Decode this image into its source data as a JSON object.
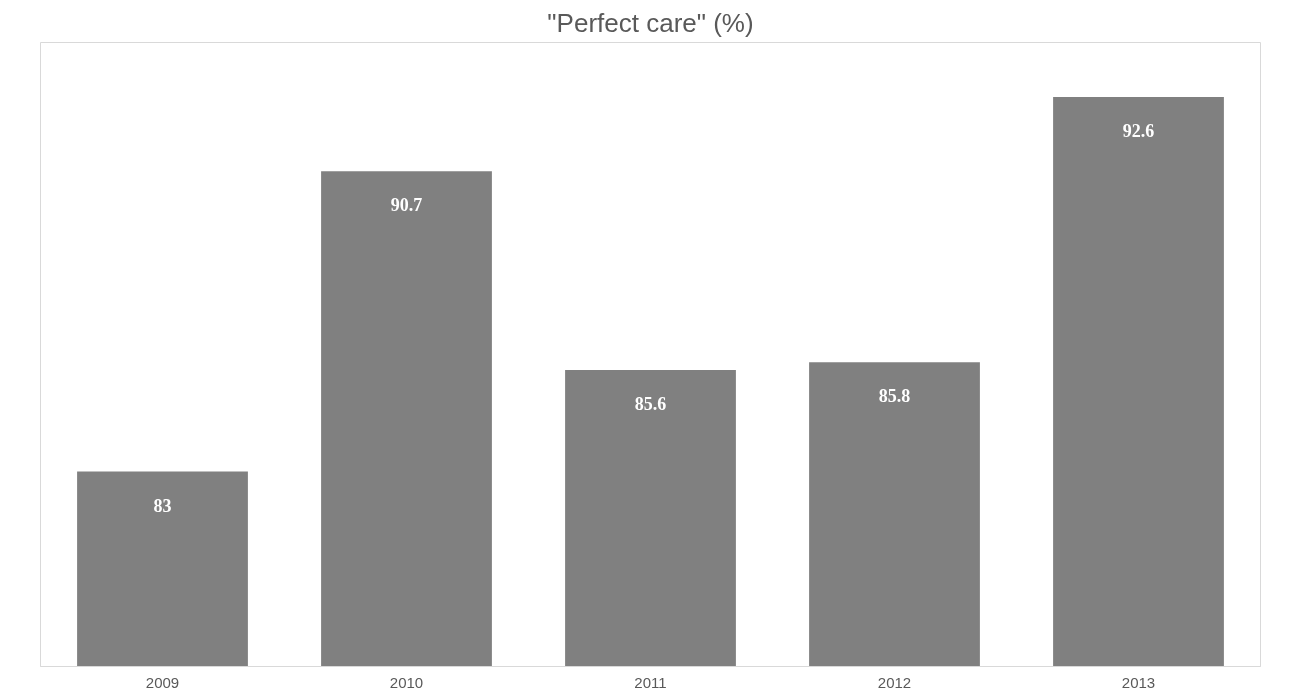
{
  "chart_data": {
    "type": "bar",
    "title": "\"Perfect care\" (%)",
    "categories": [
      "2009",
      "2010",
      "2011",
      "2012",
      "2013"
    ],
    "values": [
      83,
      90.7,
      85.6,
      85.8,
      92.6
    ],
    "color": "#808080",
    "ylim": [
      78,
      94
    ],
    "data_labels": true,
    "tick_labels": "x"
  }
}
